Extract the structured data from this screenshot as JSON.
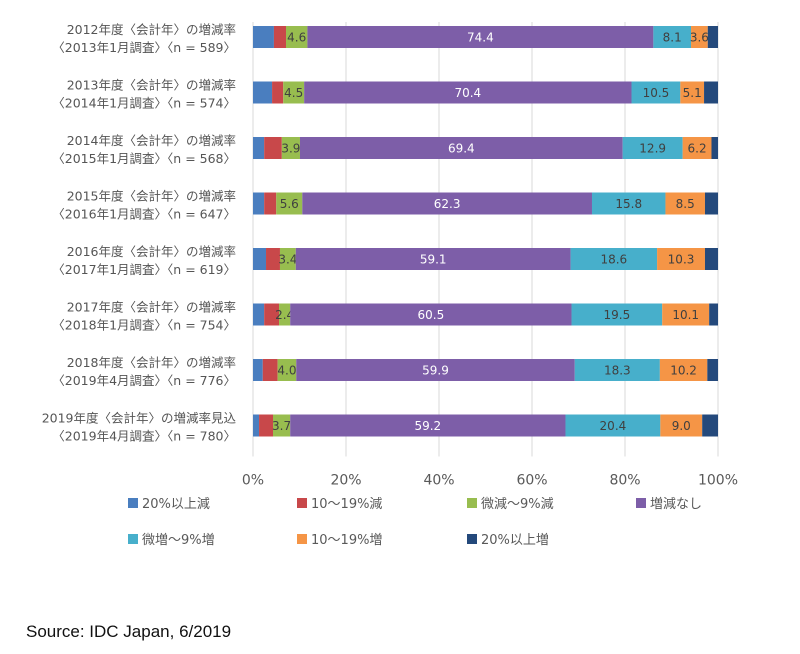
{
  "chart_data": {
    "type": "bar",
    "orientation": "horizontal",
    "stacked": "percent",
    "title": "",
    "xlabel": "",
    "ylabel": "",
    "xlim": [
      0,
      100
    ],
    "x_ticks": [
      "0%",
      "20%",
      "40%",
      "60%",
      "80%",
      "100%"
    ],
    "grid": true,
    "legend_position": "bottom",
    "categories": [
      [
        "2012年度〈会計年〉の増減率",
        "〈2013年1月調査〉〈n = 589〉"
      ],
      [
        "2013年度〈会計年〉の増減率",
        "〈2014年1月調査〉〈n = 574〉"
      ],
      [
        "2014年度〈会計年〉の増減率",
        "〈2015年1月調査〉〈n = 568〉"
      ],
      [
        "2015年度〈会計年〉の増減率",
        "〈2016年1月調査〉〈n = 647〉"
      ],
      [
        "2016年度〈会計年〉の増減率",
        "〈2017年1月調査〉〈n = 619〉"
      ],
      [
        "2017年度〈会計年〉の増減率",
        "〈2018年1月調査〉〈n = 754〉"
      ],
      [
        "2018年度〈会計年〉の増減率",
        "〈2019年4月調査〉〈n = 776〉"
      ],
      [
        "2019年度〈会計年〉の増減率見込",
        "〈2019年4月調査〉〈n = 780〉"
      ]
    ],
    "series": [
      {
        "name": "20%以上減",
        "color": "#4a7ebf",
        "labeled": false,
        "values": [
          4.5,
          4.1,
          2.4,
          2.4,
          2.8,
          2.4,
          2.1,
          1.3
        ]
      },
      {
        "name": "10〜19%減",
        "color": "#c8484a",
        "labeled": false,
        "values": [
          2.6,
          2.4,
          3.8,
          2.6,
          3.0,
          3.2,
          3.2,
          3.0
        ]
      },
      {
        "name": "微減〜9%減",
        "color": "#98bd4f",
        "labeled": true,
        "values": [
          4.6,
          4.5,
          3.9,
          5.6,
          3.4,
          2.4,
          4.0,
          3.7
        ]
      },
      {
        "name": "増減なし",
        "color": "#7d5ea8",
        "labeled": true,
        "values": [
          74.4,
          70.4,
          69.4,
          62.3,
          59.1,
          60.5,
          59.9,
          59.2
        ]
      },
      {
        "name": "微増〜9%増",
        "color": "#47afcb",
        "labeled": true,
        "values": [
          8.1,
          10.5,
          12.9,
          15.8,
          18.6,
          19.5,
          18.3,
          20.4
        ]
      },
      {
        "name": "10〜19%増",
        "color": "#f59546",
        "labeled": true,
        "values": [
          3.6,
          5.1,
          6.2,
          8.5,
          10.3,
          10.1,
          10.2,
          9.0
        ]
      },
      {
        "name": "20%以上増",
        "color": "#24497b",
        "labeled": false,
        "values": [
          2.2,
          3.0,
          1.4,
          2.8,
          2.8,
          1.9,
          2.3,
          3.4
        ]
      }
    ],
    "label_colors": {
      "dark": "#404040",
      "light": "#ffffff"
    }
  },
  "source": "Source: IDC Japan, 6/2019"
}
